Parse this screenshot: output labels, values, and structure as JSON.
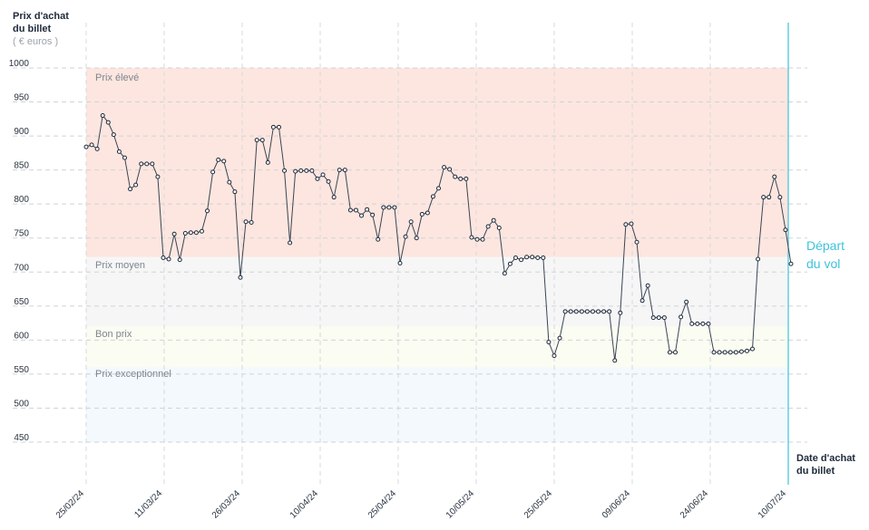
{
  "axis": {
    "y_title_line1": "Prix d'achat",
    "y_title_line2": "du billet",
    "y_unit": "( € euros )",
    "x_title_line1": "Date d'achat",
    "x_title_line2": "du billet"
  },
  "departure": {
    "line1": "Départ",
    "line2": "du vol",
    "color": "#3dc3dd"
  },
  "zones": [
    {
      "label": "Prix élevé",
      "from": 722,
      "to": 1000,
      "color": "#fde6df"
    },
    {
      "label": "Prix moyen",
      "from": 620,
      "to": 722,
      "color": "#f6f6f7"
    },
    {
      "label": "Bon prix",
      "from": 560,
      "to": 620,
      "color": "#fbfcf2"
    },
    {
      "label": "Prix exceptionnel",
      "from": 450,
      "to": 560,
      "color": "#f3f9fd"
    }
  ],
  "chart_data": {
    "type": "line",
    "title": "",
    "xlabel": "Date d'achat du billet",
    "ylabel": "Prix d'achat du billet",
    "x_start": "25/02/24",
    "x_end": "10/07/24",
    "ylim": [
      450,
      1000
    ],
    "yticks": [
      1000,
      950,
      900,
      850,
      800,
      750,
      700,
      650,
      600,
      550,
      500,
      450
    ],
    "xticks": [
      "25/02/24",
      "11/03/24",
      "26/03/24",
      "10/04/24",
      "25/04/24",
      "10/05/24",
      "25/05/24",
      "09/06/24",
      "24/06/24",
      "10/07/24"
    ],
    "grid": true,
    "line_color": "#3a4555",
    "marker": "circle",
    "series": [
      {
        "values": [
          884,
          887,
          881,
          930,
          920,
          902,
          877,
          868,
          822,
          828,
          859,
          859,
          859,
          840,
          721,
          719,
          756,
          718,
          757,
          758,
          758,
          760,
          790,
          847,
          865,
          863,
          832,
          818,
          692,
          774,
          773,
          894,
          894,
          861,
          913,
          913,
          849,
          743,
          848,
          849,
          849,
          849,
          837,
          843,
          833,
          810,
          850,
          850,
          791,
          791,
          783,
          792,
          784,
          748,
          795,
          795,
          795,
          713,
          752,
          774,
          750,
          785,
          787,
          811,
          823,
          854,
          851,
          840,
          837,
          837,
          751,
          748,
          748,
          767,
          776,
          765,
          698,
          712,
          721,
          718,
          722,
          722,
          721,
          721,
          597,
          577,
          603,
          642,
          642,
          642,
          642,
          642,
          642,
          642,
          642,
          642,
          570,
          640,
          770,
          771,
          744,
          658,
          680,
          633,
          633,
          633,
          582,
          582,
          634,
          656,
          624,
          624,
          624,
          624,
          582,
          582,
          582,
          582,
          582,
          583,
          584,
          587,
          719,
          810,
          810,
          840,
          810,
          762,
          712
        ]
      }
    ]
  }
}
